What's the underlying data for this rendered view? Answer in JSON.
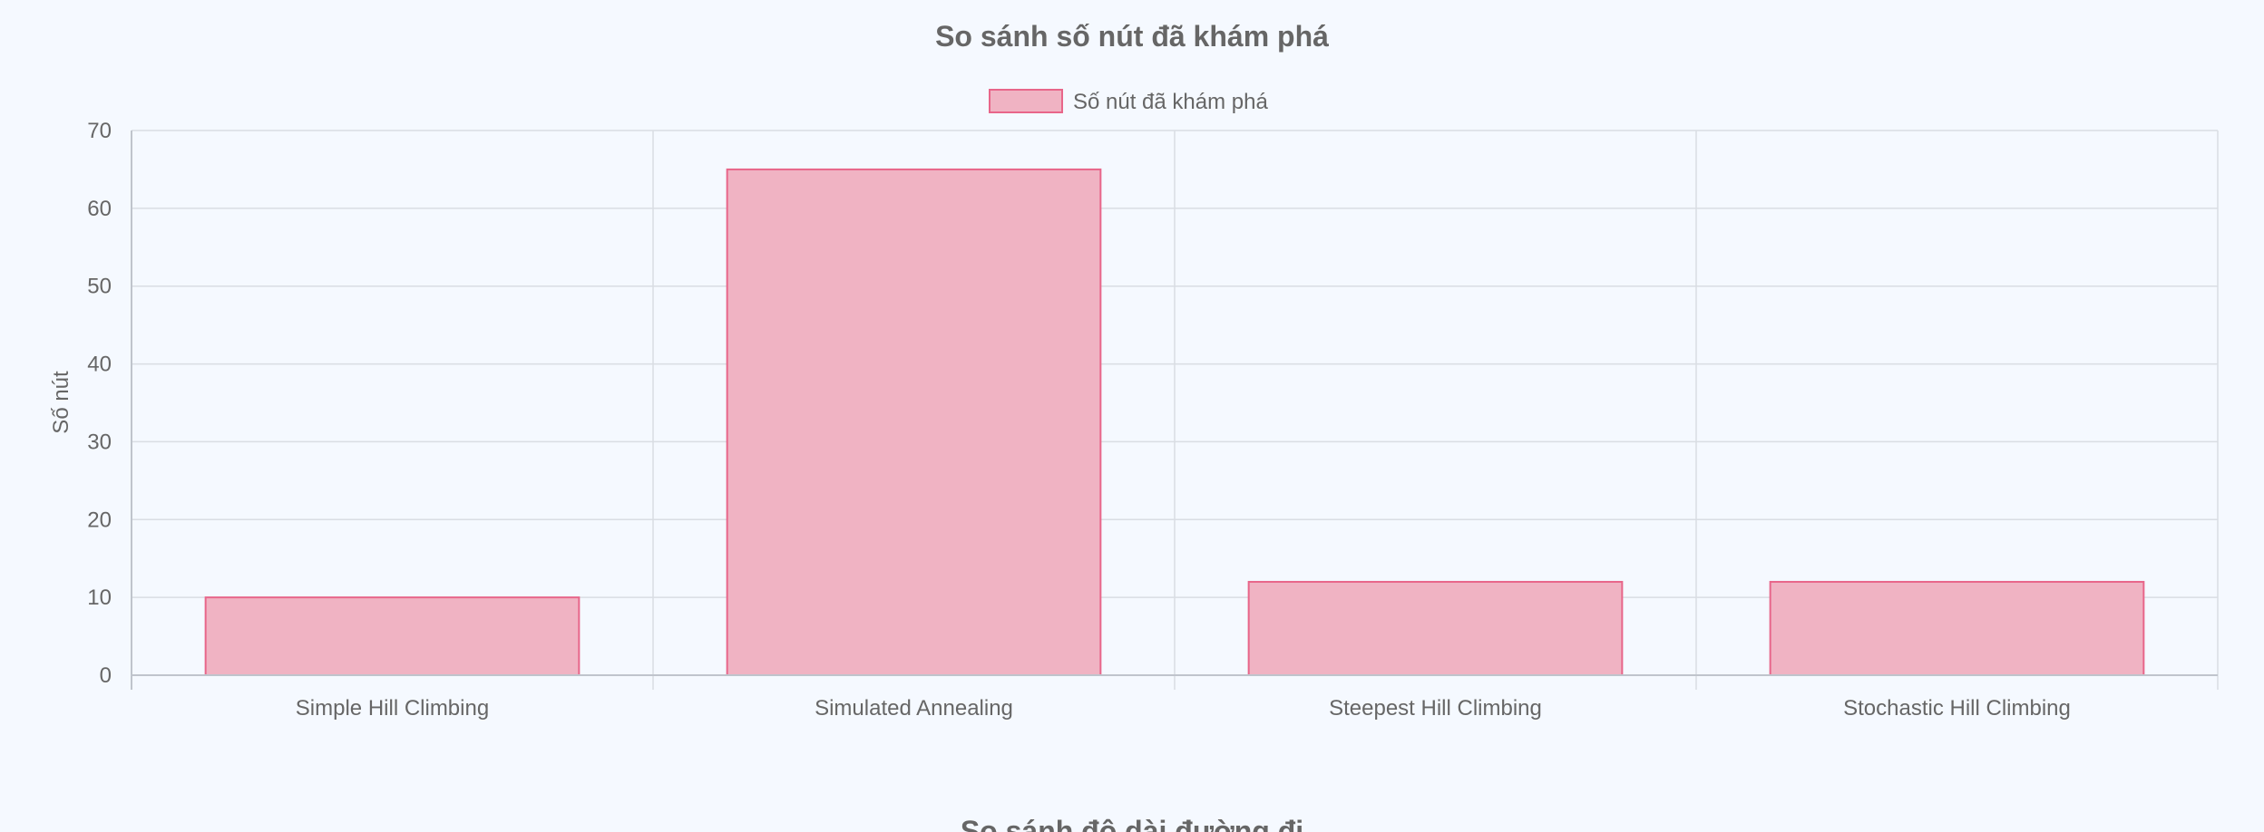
{
  "chart_data": {
    "type": "bar",
    "title": "So sánh số nút đã khám phá",
    "categories": [
      "Simple Hill Climbing",
      "Simulated Annealing",
      "Steepest Hill Climbing",
      "Stochastic Hill Climbing"
    ],
    "series": [
      {
        "name": "Số nút đã khám phá",
        "values": [
          10,
          65,
          12,
          12
        ],
        "color": "#f0b3c3",
        "border_color": "#e8668a"
      }
    ],
    "xlabel": "",
    "ylabel": "Số nút",
    "ylim": [
      0,
      70
    ],
    "yticks": [
      "0",
      "10",
      "20",
      "30",
      "40",
      "50",
      "60",
      "70"
    ],
    "grid": true,
    "legend": "top-center"
  },
  "next_chart": {
    "title": "So sánh độ dài đường đi"
  },
  "colors": {
    "background": "#f5f9ff",
    "grid": "#d9dde3",
    "text": "#666666"
  }
}
